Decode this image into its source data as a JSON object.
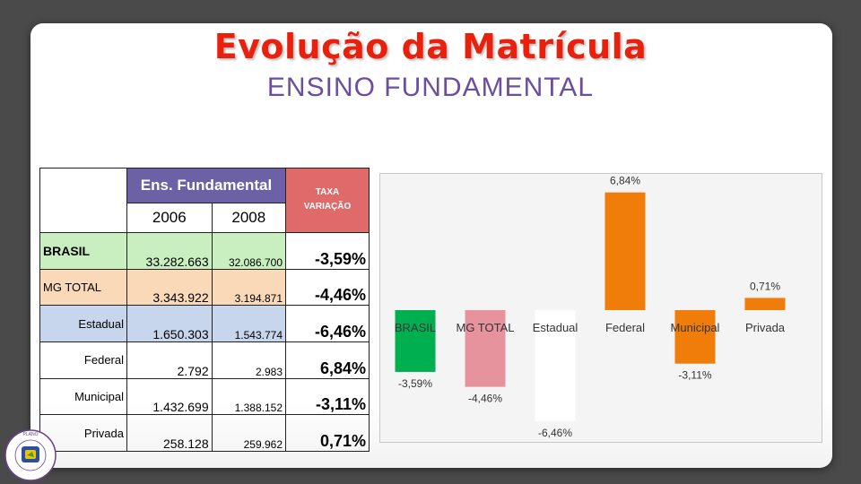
{
  "slide": {
    "title": "Evolução da Matrícula",
    "subtitle": "ENSINO FUNDAMENTAL"
  },
  "table": {
    "group_header": "Ens. Fundamental",
    "rate_header_line1": "TAXA",
    "rate_header_line2": "VARIAÇÃO",
    "years": [
      "2006",
      "2008"
    ],
    "rows": [
      {
        "label": "BRASIL",
        "v2006": "33.282.663",
        "v2008": "32.086.700",
        "rate": "-3,59%"
      },
      {
        "label": "MG TOTAL",
        "v2006": "3.343.922",
        "v2008": "3.194.871",
        "rate": "-4,46%"
      },
      {
        "label": "Estadual",
        "v2006": "1.650.303",
        "v2008": "1.543.774",
        "rate": "-6,46%"
      },
      {
        "label": "Federal",
        "v2006": "2.792",
        "v2008": "2.983",
        "rate": "6,84%"
      },
      {
        "label": "Municipal",
        "v2006": "1.432.699",
        "v2008": "1.388.152",
        "rate": "-3,11%"
      },
      {
        "label": "Privada",
        "v2006": "258.128",
        "v2008": "259.962",
        "rate": "0,71%"
      }
    ]
  },
  "chart_data": {
    "type": "bar",
    "categories": [
      "BRASIL",
      "MG TOTAL",
      "Estadual",
      "Federal",
      "Municipal",
      "Privada"
    ],
    "values": [
      -3.59,
      -4.46,
      -6.46,
      6.84,
      -3.11,
      0.71
    ],
    "data_labels": [
      "-3,59%",
      "-4,46%",
      "-6,46%",
      "6,84%",
      "-3,11%",
      "0,71%"
    ],
    "colors": [
      "#00b050",
      "#e6939e",
      "#ffffff",
      "#f07d0a",
      "#f07d0a",
      "#f07d0a"
    ],
    "ylim": [
      -7.5,
      7.5
    ],
    "grid": false,
    "legend": "none",
    "title": "",
    "xlabel": "",
    "ylabel": ""
  },
  "logo": {
    "text": "Plano Decenal de Educação de Minas Gerais"
  }
}
